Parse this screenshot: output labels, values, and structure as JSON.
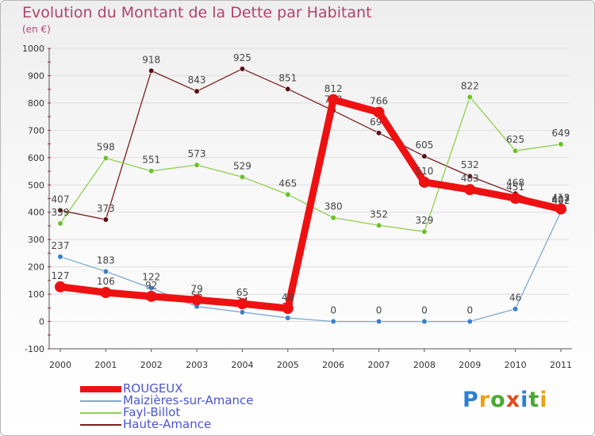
{
  "title": "Evolution du Montant de la Dette par Habitant",
  "subtitle": "(en €)",
  "logo": "Proxiti",
  "colors": {
    "title": "#b0426e",
    "legend_text": "#4b55d6",
    "grid": "#dddddd",
    "axis": "#555555"
  },
  "chart_data": {
    "type": "line",
    "title": "Evolution du Montant de la Dette par Habitant",
    "subtitle": "(en €)",
    "xlabel": "",
    "ylabel": "",
    "ylim": [
      -100,
      1000
    ],
    "y_ticks": [
      -100,
      0,
      100,
      200,
      300,
      400,
      500,
      600,
      700,
      800,
      900,
      1000
    ],
    "categories": [
      "2000",
      "2001",
      "2002",
      "2003",
      "2004",
      "2005",
      "2006",
      "2007",
      "2008",
      "2009",
      "2010",
      "2011"
    ],
    "grid": true,
    "legend_position": "bottom-left",
    "series": [
      {
        "name": "Haute-Amance",
        "color": "#7a1e22",
        "marker": "#5a1014",
        "values": [
          407,
          373,
          918,
          843,
          925,
          851,
          772,
          690,
          605,
          532,
          468,
          407
        ]
      },
      {
        "name": "Fayl-Billot",
        "color": "#8fcf4f",
        "marker": "#6cc02c",
        "values": [
          359,
          598,
          551,
          573,
          529,
          465,
          380,
          352,
          329,
          822,
          625,
          649
        ]
      },
      {
        "name": "Maizières-sur-Amance",
        "color": "#7da9d3",
        "marker": "#3a7fcc",
        "values": [
          237,
          183,
          122,
          55,
          34,
          13,
          0,
          0,
          0,
          0,
          46,
          402
        ]
      },
      {
        "name": "ROUGEUX",
        "color": "#ee1111",
        "marker": "#ee1111",
        "values": [
          127,
          106,
          92,
          79,
          65,
          48,
          812,
          766,
          510,
          483,
          451,
          412
        ]
      }
    ]
  }
}
